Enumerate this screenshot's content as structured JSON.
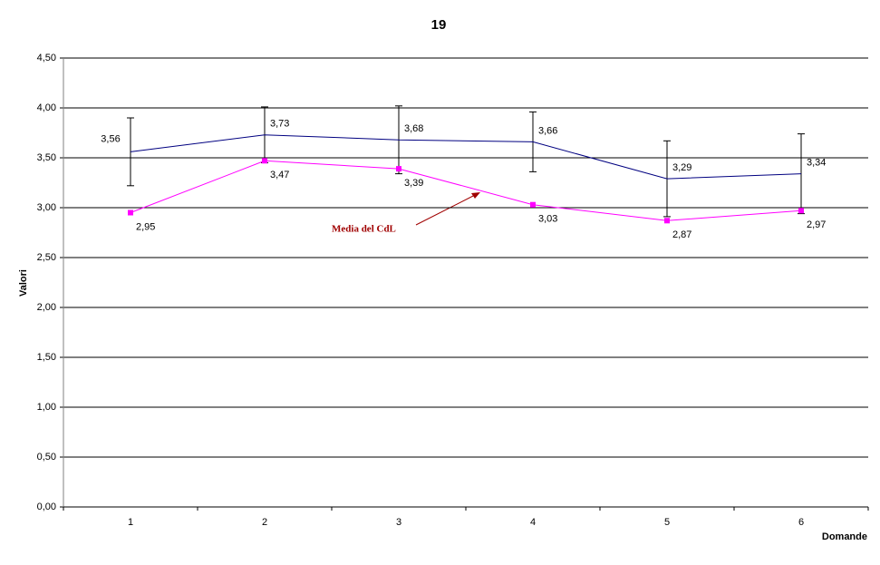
{
  "chart_data": {
    "type": "line",
    "title": "19",
    "x_label": "Domande",
    "y_label": "Valori",
    "categories": [
      "1",
      "2",
      "3",
      "4",
      "5",
      "6"
    ],
    "ylim": [
      0,
      4.5
    ],
    "yticks": [
      {
        "value": 0,
        "label": "0,00"
      },
      {
        "value": 0.5,
        "label": "0,50"
      },
      {
        "value": 1,
        "label": "1,00"
      },
      {
        "value": 1.5,
        "label": "1,50"
      },
      {
        "value": 2,
        "label": "2,00"
      },
      {
        "value": 2.5,
        "label": "2,50"
      },
      {
        "value": 3,
        "label": "3,00"
      },
      {
        "value": 3.5,
        "label": "3,50"
      },
      {
        "value": 4,
        "label": "4,00"
      },
      {
        "value": 4.5,
        "label": "4,50"
      }
    ],
    "grid": true,
    "series": [
      {
        "color": "#000080",
        "values": [
          3.56,
          3.73,
          3.68,
          3.66,
          3.29,
          3.34
        ],
        "value_labels": [
          "3,56",
          "3,73",
          "3,68",
          "3,66",
          "3,29",
          "3,34"
        ],
        "errors": [
          0.34,
          0.28,
          0.34,
          0.3,
          0.38,
          0.4
        ]
      },
      {
        "color": "#ff00ff",
        "values": [
          2.95,
          3.47,
          3.39,
          3.03,
          2.87,
          2.97
        ],
        "value_labels": [
          "2,95",
          "3,47",
          "3,39",
          "3,03",
          "2,87",
          "2,97"
        ]
      }
    ],
    "annotation": "Media del CdL"
  }
}
